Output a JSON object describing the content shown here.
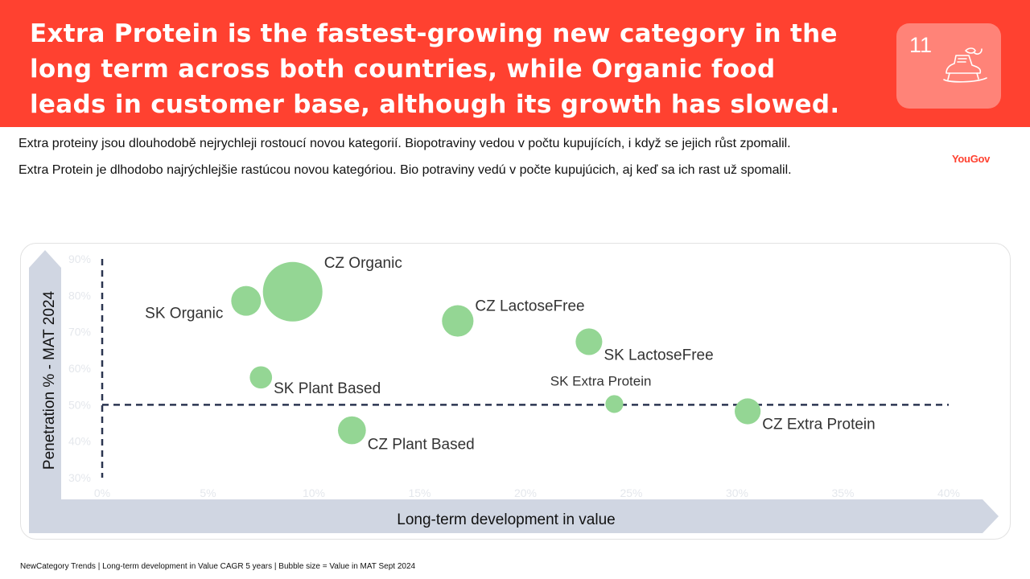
{
  "header": {
    "title": "Extra Protein is the fastest-growing new category in the long term across both countries, while Organic food leads in customer base, although its growth has slowed.",
    "slide_number": "11",
    "icon": "ice-skate-icon",
    "background_color": "#ff4130"
  },
  "subtitles": {
    "cz": "Extra proteiny jsou dlouhodobě nejrychleji rostoucí novou kategorií. Biopotraviny vedou v počtu kupujících, i když se jejich růst zpomalil.",
    "sk": "Extra Protein je dlhodobo najrýchlejšie rastúcou novou kategóriou. Bio potraviny vedú v počte kupujúcich, aj keď sa ich rast už spomalil."
  },
  "brand": "YouGov",
  "chart_data": {
    "type": "scatter",
    "subtype": "bubble",
    "xlabel": "Long-term development in value",
    "ylabel": "Penetration % - MAT 2024",
    "xlim": [
      0,
      40
    ],
    "ylim": [
      30,
      90
    ],
    "x_ticks": [
      "0%",
      "5%",
      "10%",
      "15%",
      "20%",
      "25%",
      "30%",
      "35%",
      "40%"
    ],
    "y_ticks": [
      "30%",
      "40%",
      "50%",
      "60%",
      "70%",
      "80%",
      "90%"
    ],
    "reference_lines": {
      "x": 0,
      "y": 50
    },
    "bubble_color": "#94d694",
    "points": [
      {
        "label": "CZ Organic",
        "x": 9.0,
        "y": 81.0,
        "size": 100,
        "label_pos": "right-top"
      },
      {
        "label": "SK Organic",
        "x": 6.8,
        "y": 78.5,
        "size": 25,
        "label_pos": "left-bottom"
      },
      {
        "label": "CZ LactoseFree",
        "x": 16.8,
        "y": 73.0,
        "size": 28,
        "label_pos": "right-top"
      },
      {
        "label": "SK LactoseFree",
        "x": 23.0,
        "y": 67.3,
        "size": 20,
        "label_pos": "right-bottom"
      },
      {
        "label": "SK Plant Based",
        "x": 7.5,
        "y": 57.5,
        "size": 14,
        "label_pos": "right-bottom"
      },
      {
        "label": "SK Extra Protein",
        "x": 24.2,
        "y": 50.2,
        "size": 9,
        "label_pos": "top-left"
      },
      {
        "label": "CZ Extra Protein",
        "x": 30.5,
        "y": 48.2,
        "size": 19,
        "label_pos": "right-bottom"
      },
      {
        "label": "CZ Plant Based",
        "x": 11.8,
        "y": 43.0,
        "size": 22,
        "label_pos": "right-bottom"
      }
    ]
  },
  "footnote": "NewCategory Trends | Long-term development  in Value CAGR 5 years | Bubble size = Value in MAT Sept 2024"
}
